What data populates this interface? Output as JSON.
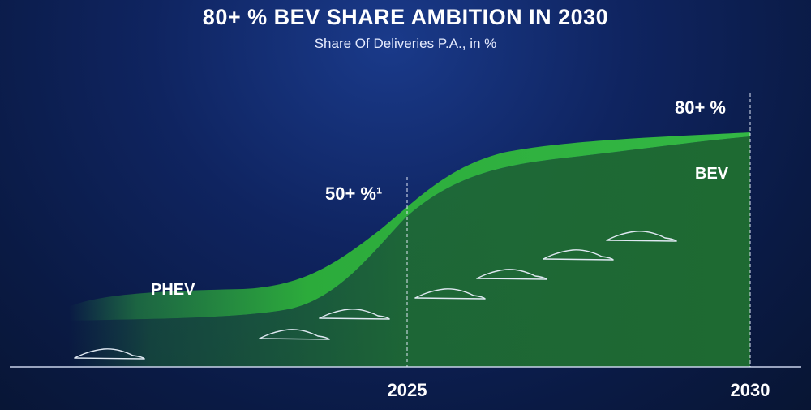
{
  "header": {
    "title": "80+ % BEV SHARE AMBITION IN 2030",
    "subtitle": "Share Of Deliveries P.A., in %"
  },
  "chart_data": {
    "type": "area",
    "title": "80+ % BEV SHARE AMBITION IN 2030",
    "subtitle": "Share Of Deliveries P.A., in %",
    "x_ticks": [
      "2025",
      "2030"
    ],
    "series": [
      {
        "name": "PHEV"
      },
      {
        "name": "BEV"
      }
    ],
    "annotations": [
      {
        "label": "50+ %¹",
        "x": "2025",
        "value": 50
      },
      {
        "label": "80+ %",
        "x": "2030",
        "value": 80
      }
    ],
    "colors": {
      "band": "#2fa83a",
      "area": "#1d6b33",
      "background": "#0f2460"
    }
  }
}
